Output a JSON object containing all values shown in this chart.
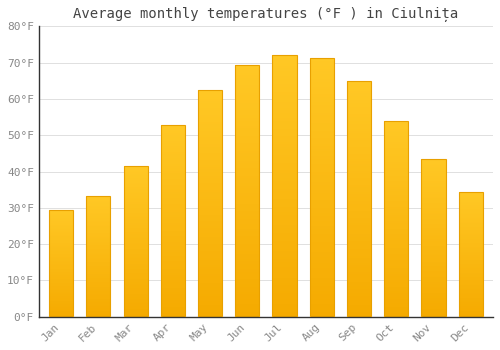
{
  "title": "Average monthly temperatures (°F ) in Ciulnița",
  "months": [
    "Jan",
    "Feb",
    "Mar",
    "Apr",
    "May",
    "Jun",
    "Jul",
    "Aug",
    "Sep",
    "Oct",
    "Nov",
    "Dec"
  ],
  "values": [
    29.5,
    33.3,
    41.5,
    52.7,
    62.5,
    69.3,
    72.0,
    71.2,
    64.8,
    54.0,
    43.5,
    34.5
  ],
  "bar_color_top": "#FFC825",
  "bar_color_bottom": "#F5A800",
  "bar_color_mid": "#FFAA00",
  "ylim": [
    0,
    80
  ],
  "yticks": [
    0,
    10,
    20,
    30,
    40,
    50,
    60,
    70,
    80
  ],
  "ytick_labels": [
    "0°F",
    "10°F",
    "20°F",
    "30°F",
    "40°F",
    "50°F",
    "60°F",
    "70°F",
    "80°F"
  ],
  "bg_color": "#FFFFFF",
  "grid_color": "#E0E0E0",
  "text_color": "#888888",
  "title_color": "#444444",
  "spine_color": "#333333",
  "font_family": "monospace",
  "title_fontsize": 10,
  "tick_fontsize": 8,
  "bar_width": 0.65
}
